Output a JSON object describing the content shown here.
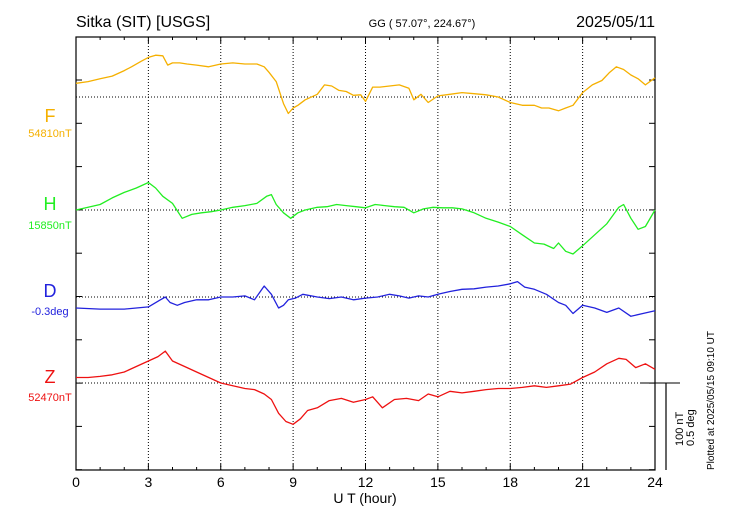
{
  "header": {
    "station": "Sitka (SIT)  [USGS]",
    "coords": "GG ( 57.07°, 224.67°)",
    "date": "2025/05/11"
  },
  "side": {
    "plotted": "Plotted at 2025/05/15 09:10 UT",
    "scale_nt": "100 nT",
    "scale_deg": "0.5 deg"
  },
  "chart_data": {
    "type": "line",
    "xlabel": "U T (hour)",
    "xlim": [
      0,
      24
    ],
    "xticks": [
      "0",
      "3",
      "6",
      "9",
      "12",
      "15",
      "18",
      "21",
      "24"
    ],
    "grid": true,
    "series": [
      {
        "name": "F",
        "baseline": "54810nT",
        "color": "#f5b000",
        "x": [
          0,
          0.5,
          1,
          1.5,
          2,
          2.3,
          2.7,
          3,
          3.3,
          3.6,
          3.8,
          4,
          4.3,
          4.6,
          5,
          5.5,
          6,
          6.5,
          7,
          7.5,
          7.8,
          8,
          8.3,
          8.6,
          8.8,
          9,
          9.2,
          9.5,
          10,
          10.3,
          10.6,
          10.9,
          11.2,
          11.5,
          11.8,
          12,
          12.3,
          12.6,
          13,
          13.4,
          13.8,
          14,
          14.3,
          14.6,
          15,
          15.5,
          16,
          16.5,
          17,
          17.5,
          18,
          18.5,
          19,
          19.3,
          19.6,
          20,
          20.3,
          20.6,
          21,
          21.4,
          21.8,
          22.1,
          22.4,
          22.7,
          23,
          23.3,
          23.6,
          24
        ],
        "y": [
          25,
          28,
          33,
          38,
          48,
          55,
          65,
          72,
          76,
          75,
          58,
          62,
          62,
          60,
          58,
          55,
          60,
          62,
          60,
          60,
          55,
          45,
          28,
          -12,
          -30,
          -20,
          -15,
          -5,
          5,
          22,
          20,
          12,
          10,
          3,
          4,
          -8,
          18,
          18,
          20,
          22,
          16,
          -5,
          5,
          -10,
          2,
          5,
          8,
          6,
          4,
          0,
          -10,
          -15,
          -15,
          -20,
          -20,
          -25,
          -20,
          -15,
          8,
          22,
          30,
          44,
          55,
          50,
          40,
          33,
          22,
          35
        ]
      },
      {
        "name": "H",
        "baseline": "15850nT",
        "color": "#22ee22",
        "x": [
          0,
          0.5,
          1,
          1.5,
          2,
          2.5,
          3,
          3.3,
          3.6,
          4,
          4.4,
          4.8,
          5.2,
          5.6,
          6,
          6.5,
          7,
          7.5,
          7.9,
          8.1,
          8.3,
          8.6,
          8.9,
          9.2,
          9.5,
          10,
          10.4,
          10.8,
          11.2,
          11.6,
          12,
          12.4,
          12.8,
          13.2,
          13.6,
          14,
          14.4,
          14.8,
          15.2,
          15.6,
          16,
          16.5,
          17,
          17.5,
          18,
          18.5,
          19,
          19.4,
          19.8,
          20,
          20.3,
          20.6,
          21,
          21.5,
          22,
          22.5,
          22.7,
          23,
          23.3,
          23.6,
          24
        ],
        "y": [
          0,
          5,
          10,
          22,
          32,
          40,
          50,
          40,
          25,
          12,
          -15,
          -8,
          -5,
          -3,
          0,
          5,
          8,
          12,
          25,
          28,
          10,
          -5,
          -15,
          -5,
          0,
          5,
          6,
          10,
          8,
          6,
          4,
          10,
          8,
          6,
          5,
          -5,
          2,
          5,
          4,
          4,
          2,
          -5,
          -15,
          -22,
          -30,
          -45,
          -60,
          -62,
          -70,
          -60,
          -75,
          -80,
          -65,
          -45,
          -25,
          5,
          10,
          -15,
          -35,
          -30,
          0
        ]
      },
      {
        "name": "D",
        "baseline": "-0.3deg",
        "color": "#2222dd",
        "x": [
          0,
          1,
          2,
          3,
          3.5,
          3.7,
          3.9,
          4.2,
          4.5,
          5,
          5.5,
          6,
          6.5,
          7,
          7.4,
          7.8,
          8.1,
          8.4,
          8.6,
          8.8,
          9.1,
          9.4,
          10,
          10.5,
          11,
          11.5,
          12,
          12.5,
          13,
          13.4,
          13.8,
          14.2,
          14.6,
          15,
          15.5,
          16,
          16.5,
          17,
          17.5,
          18,
          18.3,
          18.6,
          19,
          19.5,
          20,
          20.3,
          20.6,
          21,
          21.5,
          22,
          22.5,
          23,
          23.5,
          24
        ],
        "y": [
          -20,
          -22,
          -22,
          -18,
          -5,
          0,
          -10,
          -15,
          -10,
          -5,
          -5,
          0,
          0,
          2,
          -5,
          20,
          5,
          -20,
          -15,
          -5,
          -2,
          5,
          0,
          -3,
          0,
          -5,
          -2,
          0,
          5,
          2,
          -2,
          2,
          0,
          5,
          10,
          14,
          15,
          18,
          20,
          24,
          28,
          18,
          14,
          5,
          -10,
          -15,
          -30,
          -15,
          -20,
          -28,
          -20,
          -35,
          -30,
          -25
        ]
      },
      {
        "name": "Z",
        "baseline": "52470nT",
        "color": "#ee1111",
        "x": [
          0,
          0.5,
          1,
          1.5,
          2,
          2.5,
          3,
          3.4,
          3.7,
          4,
          4.5,
          5,
          5.5,
          6,
          6.5,
          7,
          7.4,
          7.8,
          8.1,
          8.4,
          8.7,
          9,
          9.3,
          9.6,
          10,
          10.5,
          11,
          11.5,
          12,
          12.3,
          12.7,
          13.2,
          13.7,
          14.2,
          14.6,
          15,
          15.5,
          16,
          16.5,
          17,
          17.5,
          18,
          18.5,
          19,
          19.5,
          20,
          20.5,
          21,
          21.5,
          22,
          22.5,
          22.8,
          23.2,
          23.6,
          24
        ],
        "y": [
          10,
          10,
          12,
          15,
          20,
          30,
          40,
          48,
          58,
          40,
          30,
          20,
          10,
          0,
          -5,
          -10,
          -12,
          -20,
          -30,
          -55,
          -70,
          -75,
          -65,
          -50,
          -45,
          -32,
          -28,
          -35,
          -30,
          -25,
          -45,
          -30,
          -28,
          -32,
          -20,
          -25,
          -15,
          -18,
          -15,
          -12,
          -10,
          -10,
          -8,
          -5,
          -8,
          -5,
          -2,
          10,
          20,
          35,
          45,
          43,
          28,
          35,
          25
        ]
      }
    ]
  }
}
